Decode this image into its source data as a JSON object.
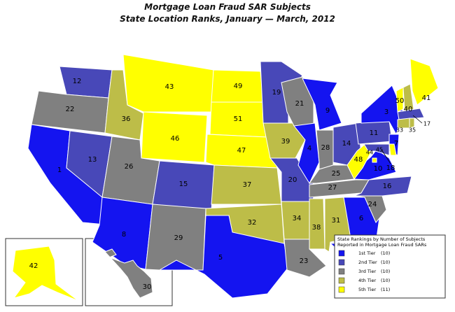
{
  "map": {
    "title": "Mortgage Loan Fraud SAR Subjects",
    "subtitle": "State Location Ranks, January — March, 2012",
    "legend": {
      "heading": [
        "State Rankings by Number of Subjects",
        "Reported in Mortgage Loan Fraud SARs"
      ],
      "tiers": [
        {
          "name": "1st Tier",
          "count": "(10)",
          "color": "#1414f0"
        },
        {
          "name": "2nd Tier",
          "count": "(10)",
          "color": "#4848b8"
        },
        {
          "name": "3rd Tier",
          "count": "(10)",
          "color": "#808080"
        },
        {
          "name": "4th Tier",
          "count": "(10)",
          "color": "#bdbd48"
        },
        {
          "name": "5th Tier",
          "count": "(11)",
          "color": "#ffff00"
        }
      ]
    },
    "states": [
      {
        "rank": 12,
        "tier": "2nd Tier"
      },
      {
        "rank": 22,
        "tier": "3rd Tier"
      },
      {
        "rank": 1,
        "tier": "1st Tier"
      },
      {
        "rank": 13,
        "tier": "2nd Tier"
      },
      {
        "rank": 36,
        "tier": "4th Tier"
      },
      {
        "rank": 43,
        "tier": "5th Tier"
      },
      {
        "rank": 46,
        "tier": "5th Tier"
      },
      {
        "rank": 26,
        "tier": "3rd Tier"
      },
      {
        "rank": 15,
        "tier": "2nd Tier"
      },
      {
        "rank": 8,
        "tier": "1st Tier"
      },
      {
        "rank": 29,
        "tier": "3rd Tier"
      },
      {
        "rank": 49,
        "tier": "5th Tier"
      },
      {
        "rank": 51,
        "tier": "5th Tier"
      },
      {
        "rank": 47,
        "tier": "5th Tier"
      },
      {
        "rank": 37,
        "tier": "4th Tier"
      },
      {
        "rank": 32,
        "tier": "4th Tier"
      },
      {
        "rank": 5,
        "tier": "1st Tier"
      },
      {
        "rank": 19,
        "tier": "2nd Tier"
      },
      {
        "rank": 39,
        "tier": "4th Tier"
      },
      {
        "rank": 20,
        "tier": "2nd Tier"
      },
      {
        "rank": 34,
        "tier": "4th Tier"
      },
      {
        "rank": 23,
        "tier": "3rd Tier"
      },
      {
        "rank": 21,
        "tier": "3rd Tier"
      },
      {
        "rank": 4,
        "tier": "1st Tier"
      },
      {
        "rank": 9,
        "tier": "1st Tier"
      },
      {
        "rank": 28,
        "tier": "3rd Tier"
      },
      {
        "rank": 14,
        "tier": "2nd Tier"
      },
      {
        "rank": 25,
        "tier": "3rd Tier"
      },
      {
        "rank": 27,
        "tier": "3rd Tier"
      },
      {
        "rank": 38,
        "tier": "4th Tier"
      },
      {
        "rank": 31,
        "tier": "4th Tier"
      },
      {
        "rank": 6,
        "tier": "1st Tier"
      },
      {
        "rank": 2,
        "tier": "1st Tier"
      },
      {
        "rank": 24,
        "tier": "3rd Tier"
      },
      {
        "rank": 16,
        "tier": "2nd Tier"
      },
      {
        "rank": 10,
        "tier": "1st Tier"
      },
      {
        "rank": 48,
        "tier": "5th Tier"
      },
      {
        "rank": 11,
        "tier": "2nd Tier"
      },
      {
        "rank": 3,
        "tier": "1st Tier"
      },
      {
        "rank": 7,
        "tier": "1st Tier"
      },
      {
        "rank": 18,
        "tier": "2nd Tier"
      },
      {
        "rank": 45,
        "tier": "5th Tier"
      },
      {
        "rank": 50,
        "tier": "5th Tier"
      },
      {
        "rank": 40,
        "tier": "4th Tier"
      },
      {
        "rank": 41,
        "tier": "5th Tier"
      },
      {
        "rank": 17,
        "tier": "2nd Tier"
      },
      {
        "rank": 33,
        "tier": "4th Tier"
      },
      {
        "rank": 35,
        "tier": "4th Tier"
      },
      {
        "rank": 44,
        "tier": "5th Tier"
      },
      {
        "rank": 42,
        "tier": "5th Tier"
      },
      {
        "rank": 30,
        "tier": "3rd Tier"
      }
    ]
  }
}
